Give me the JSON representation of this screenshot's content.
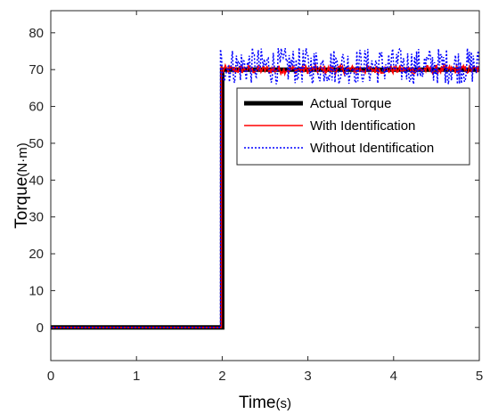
{
  "chart_data": {
    "type": "line",
    "title": "",
    "xlabel": "Time",
    "xlabel_unit": "(s)",
    "ylabel": "Torque",
    "ylabel_unit": "(N·m)",
    "xlim": [
      0,
      5
    ],
    "ylim": [
      -9,
      86
    ],
    "xticks": [
      0,
      1,
      2,
      3,
      4,
      5
    ],
    "yticks": [
      0,
      10,
      20,
      30,
      40,
      50,
      60,
      70,
      80
    ],
    "xtick_labels": [
      "0",
      "1",
      "2",
      "3",
      "4",
      "5"
    ],
    "ytick_labels": [
      "0",
      "10",
      "20",
      "30",
      "40",
      "50",
      "60",
      "70",
      "80"
    ],
    "grid": false,
    "legend_position": "right-middle",
    "step_time": 2.0,
    "series": [
      {
        "name": "Actual Torque",
        "color": "#000000",
        "style": "solid-thick",
        "points": [
          [
            0,
            0
          ],
          [
            2.0,
            0
          ],
          [
            2.0,
            70
          ],
          [
            5,
            70
          ]
        ]
      },
      {
        "name": "With Identification",
        "color": "#ff0000",
        "style": "solid",
        "points": [
          [
            0,
            0
          ],
          [
            1.99,
            0
          ],
          [
            1.99,
            70
          ],
          [
            5,
            70
          ]
        ],
        "steady_state_mean": 70,
        "steady_state_amplitude": 1.2
      },
      {
        "name": "Without Identification",
        "color": "#0000ff",
        "style": "dotted",
        "points": [
          [
            0,
            0
          ],
          [
            1.98,
            0
          ],
          [
            1.98,
            70
          ],
          [
            5,
            70
          ]
        ],
        "steady_state_mean": 71,
        "steady_state_amplitude": 5
      }
    ]
  }
}
